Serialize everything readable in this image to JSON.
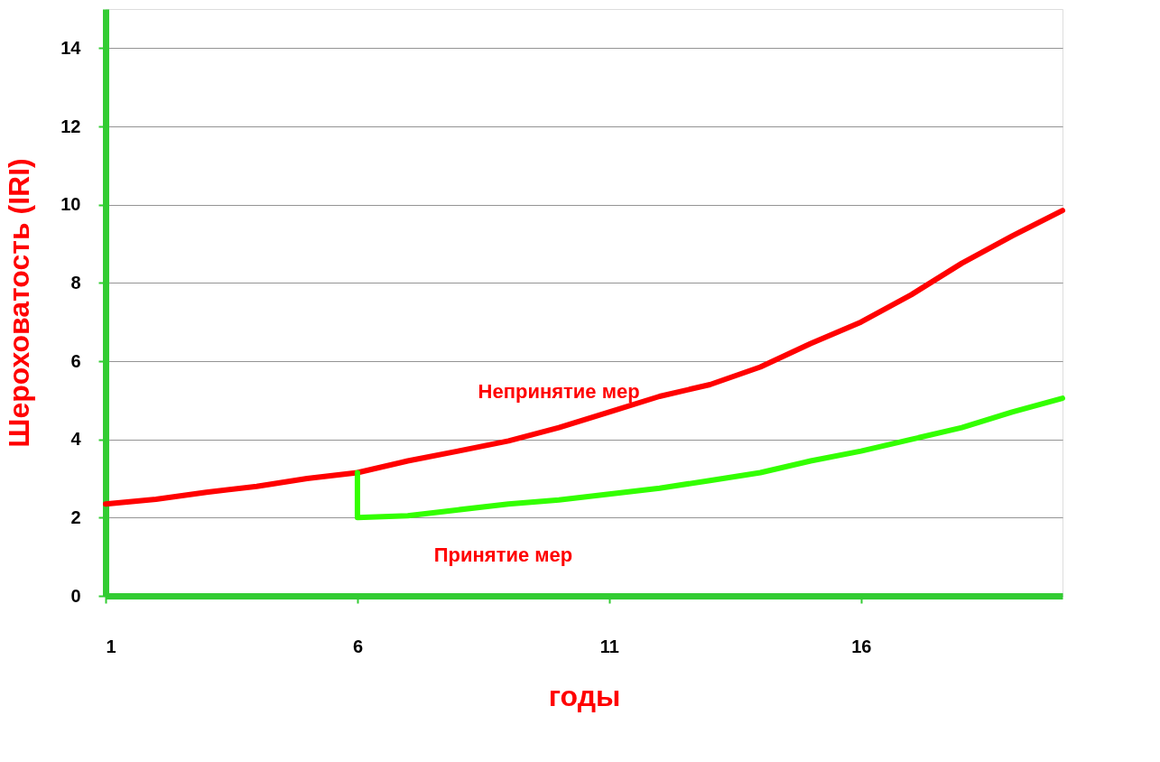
{
  "chart_data": {
    "type": "line",
    "xlabel": "годы",
    "ylabel": "Шероховатость (IRI)",
    "xlim": [
      1,
      20
    ],
    "ylim": [
      0,
      15
    ],
    "xticks": [
      1,
      6,
      11,
      16
    ],
    "yticks": [
      0,
      2,
      4,
      6,
      8,
      10,
      12,
      14
    ],
    "grid": "y",
    "marker": "none",
    "line_style": "solid",
    "series": [
      {
        "name": "Непринятие мер",
        "color": "#ff0000",
        "x": [
          1,
          2,
          3,
          4,
          5,
          6,
          7,
          8,
          9,
          10,
          11,
          12,
          13,
          14,
          15,
          16,
          17,
          18,
          19,
          20
        ],
        "values": [
          2.35,
          2.47,
          2.65,
          2.8,
          3.0,
          3.15,
          3.45,
          3.7,
          3.96,
          4.3,
          4.7,
          5.1,
          5.4,
          5.85,
          6.45,
          7.0,
          7.7,
          8.5,
          9.2,
          9.85
        ]
      },
      {
        "name": "Принятие мер",
        "color": "#33ff00",
        "x": [
          6,
          6,
          7,
          8,
          9,
          10,
          11,
          12,
          13,
          14,
          15,
          16,
          17,
          18,
          19,
          20
        ],
        "values": [
          3.15,
          2.0,
          2.05,
          2.2,
          2.35,
          2.45,
          2.6,
          2.75,
          2.95,
          3.15,
          3.45,
          3.7,
          4.0,
          4.3,
          4.7,
          5.05
        ]
      }
    ]
  }
}
